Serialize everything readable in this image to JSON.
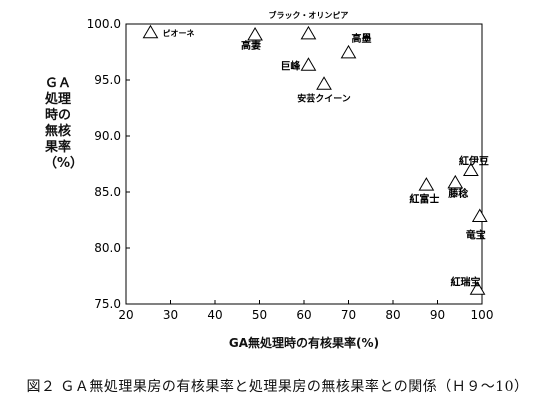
{
  "chart_data": {
    "type": "scatter",
    "title": "",
    "xlabel": "GA無処理時の有核果率(%)",
    "ylabel": "ＧＡ処理時の無核果率（%）",
    "xlim": [
      20,
      100
    ],
    "ylim": [
      75,
      100
    ],
    "xticks": [
      20,
      30,
      40,
      50,
      60,
      70,
      80,
      90,
      100
    ],
    "yticks": [
      "75.0",
      "80.0",
      "85.0",
      "90.0",
      "95.0",
      "100.0"
    ],
    "grid": false,
    "marker": "triangle-open",
    "points": [
      {
        "label": "ピオーネ",
        "x": 25.5,
        "y": 99.2
      },
      {
        "label": "高妻",
        "x": 49,
        "y": 99.0
      },
      {
        "label": "ブラック・オリンピア",
        "x": 61,
        "y": 99.1
      },
      {
        "label": "高墨",
        "x": 70,
        "y": 97.4
      },
      {
        "label": "巨峰",
        "x": 61,
        "y": 96.3
      },
      {
        "label": "安芸クイーン",
        "x": 64.5,
        "y": 94.6
      },
      {
        "label": "紅富士",
        "x": 87.5,
        "y": 85.6
      },
      {
        "label": "藤稔",
        "x": 94,
        "y": 85.8
      },
      {
        "label": "紅伊豆",
        "x": 97.5,
        "y": 86.9
      },
      {
        "label": "竜宝",
        "x": 99.5,
        "y": 82.8
      },
      {
        "label": "紅瑞宝",
        "x": 99,
        "y": 76.3
      }
    ]
  },
  "caption": "図２ ＧＡ無処理果房の有核果率と処理果房の無核果率との関係（Ｈ９～10）"
}
